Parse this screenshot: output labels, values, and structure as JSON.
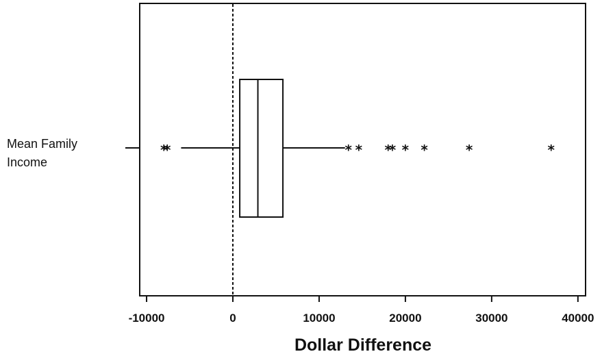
{
  "chart_data": {
    "type": "boxplot",
    "xlabel": "Dollar Difference",
    "xlim": [
      -11000,
      40500
    ],
    "xticks": [
      -10000,
      0,
      10000,
      20000,
      30000,
      40000
    ],
    "xtick_labels": [
      "-10000",
      "0",
      "10000",
      "20000",
      "30000",
      "40000"
    ],
    "reference_line": {
      "x": 0,
      "style": "dashed"
    },
    "category": {
      "label_lines": [
        "Mean Family",
        "Income"
      ],
      "q1": 800,
      "median": 2900,
      "q3": 5800,
      "whisker_low": -6000,
      "whisker_high": 13000,
      "outliers": [
        -8000,
        -7600,
        13400,
        14600,
        18000,
        18500,
        20000,
        22200,
        27400,
        36900
      ]
    }
  }
}
